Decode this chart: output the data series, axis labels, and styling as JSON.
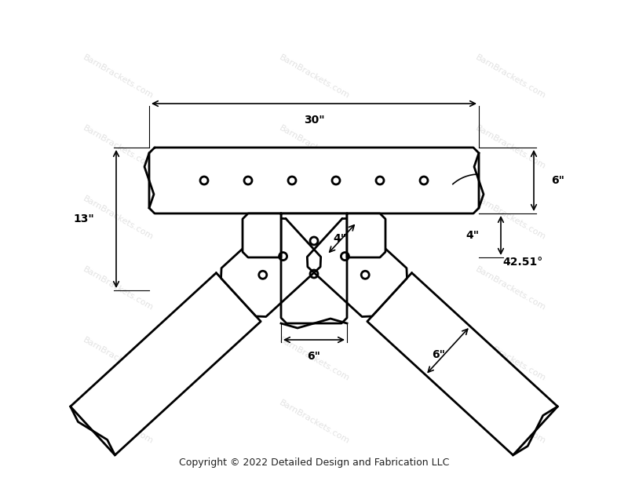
{
  "bg_color": "#ffffff",
  "line_color": "#000000",
  "lw": 2.0,
  "watermark_color": "#d0d0d0",
  "watermark_text": "BarnBrackets.com",
  "copyright_text": "Copyright © 2022 Detailed Design and Fabrication LLC",
  "dim_6_top": "6\"",
  "dim_6_beam": "6\"",
  "dim_4_offset": "4\"",
  "dim_angle": "42.51°",
  "dim_13": "13\"",
  "dim_4_bottom": "4\"",
  "dim_6_bottom": "6\"",
  "dim_30": "30\""
}
